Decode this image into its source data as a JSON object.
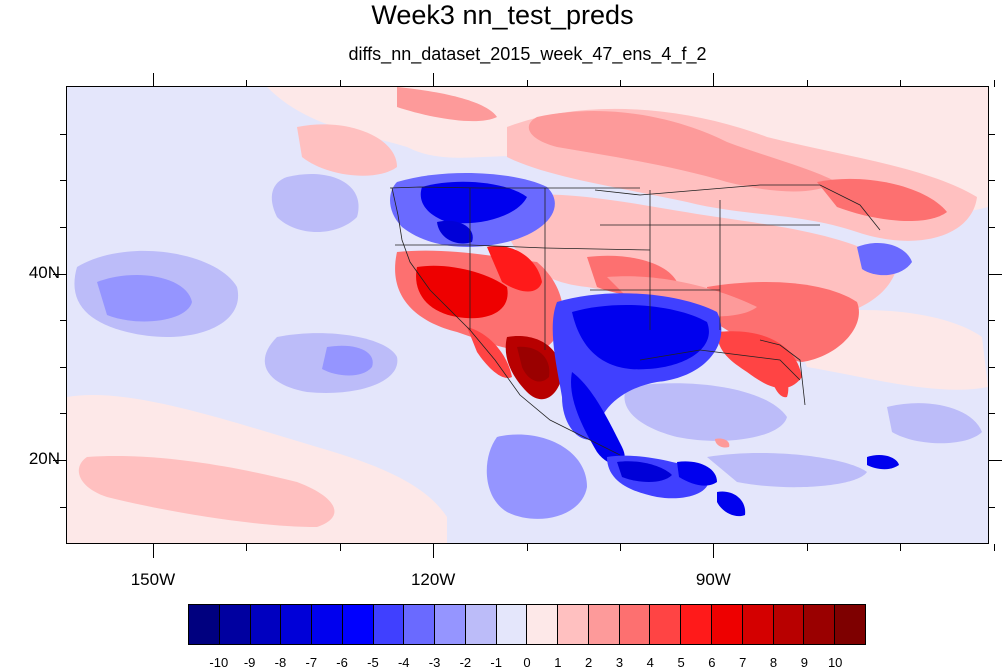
{
  "title": "Week3 nn_test_preds",
  "subtitle": "diffs_nn_dataset_2015_week_47_ens_4_f_2",
  "map": {
    "projection": "cylindrical-equidistant",
    "lon_range": [
      -159.2,
      -60.6
    ],
    "lat_range": [
      11,
      60
    ],
    "lon_ticks": [
      {
        "lon": -150,
        "label": "150W"
      },
      {
        "lon": -120,
        "label": "120W"
      },
      {
        "lon": -90,
        "label": "90W"
      }
    ],
    "lat_ticks": [
      {
        "lat": 40,
        "label": "40N"
      },
      {
        "lat": 20,
        "label": "20N"
      }
    ],
    "field": "nn_test_preds difference (week 3)"
  },
  "colorbar": {
    "labels": [
      "-10",
      "-9",
      "-8",
      "-7",
      "-6",
      "-5",
      "-4",
      "-3",
      "-2",
      "-1",
      "0",
      "1",
      "2",
      "3",
      "4",
      "5",
      "6",
      "7",
      "8",
      "9",
      "10"
    ],
    "colors": [
      "#00007f",
      "#0000a0",
      "#0000c0",
      "#0000d8",
      "#0000ee",
      "#0000ff",
      "#4040ff",
      "#6a6aff",
      "#9595ff",
      "#bcbcf9",
      "#e4e6fb",
      "#fde8e8",
      "#ffc0c0",
      "#fd9a9a",
      "#fd7070",
      "#ff4444",
      "#ff1a1a",
      "#ee0000",
      "#d40000",
      "#b80000",
      "#9a0000",
      "#7e0000"
    ]
  }
}
